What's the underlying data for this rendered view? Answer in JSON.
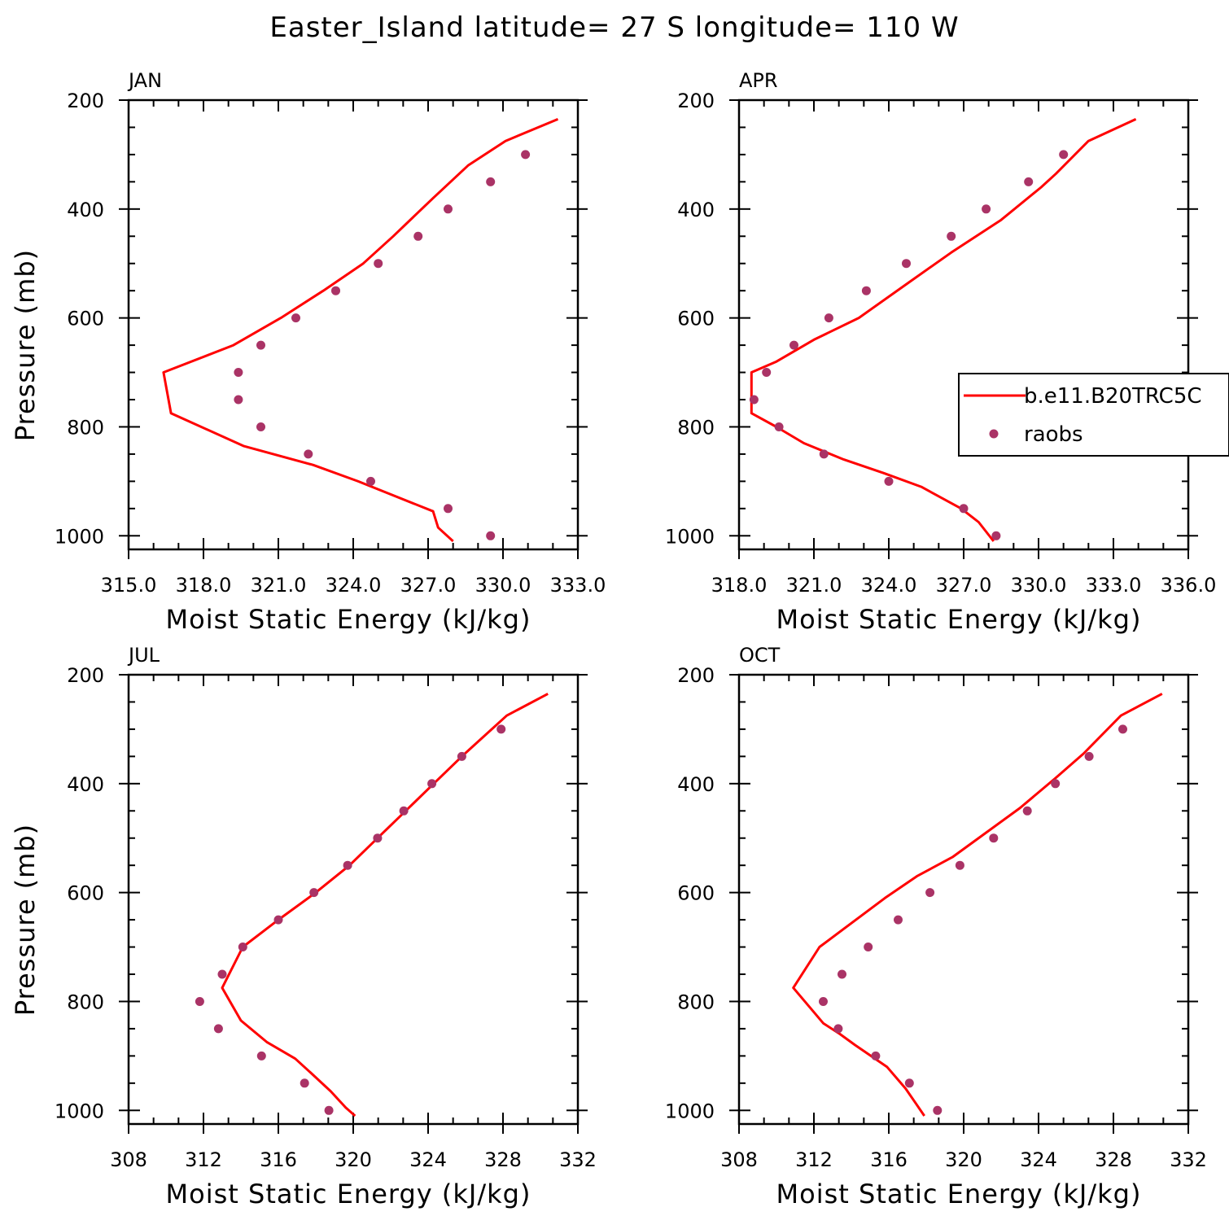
{
  "title": "Easter_Island  latitude= 27 S longitude= 110 W",
  "colors": {
    "model": "#ff0000",
    "obs": "#aa3366"
  },
  "legend": {
    "model_label": "b.e11.B20TRC5C",
    "obs_label": "raobs",
    "placement": "right-center of APR panel"
  },
  "chart_data": [
    {
      "type": "line",
      "panel": "JAN",
      "xlabel": "Moist Static Energy (kJ/kg)",
      "ylabel": "Pressure (mb)",
      "xlim": [
        315,
        333
      ],
      "ylim": [
        1025,
        200
      ],
      "xticks": [
        315,
        318,
        321,
        324,
        327,
        330,
        333
      ],
      "xtick_labels": [
        "315.0",
        "318.0",
        "321.0",
        "324.0",
        "327.0",
        "330.0",
        "333.0"
      ],
      "yticks": [
        1000,
        800,
        600,
        400,
        200
      ],
      "ytick_labels": [
        "1000",
        "800",
        "600",
        "400",
        "200"
      ],
      "series": [
        {
          "name": "b.e11.B20TRC5C",
          "kind": "line",
          "points": [
            [
              328.0,
              1010
            ],
            [
              327.4,
              985
            ],
            [
              327.2,
              955
            ],
            [
              324.2,
              900
            ],
            [
              322.4,
              870
            ],
            [
              319.6,
              835
            ],
            [
              316.7,
              775
            ],
            [
              316.4,
              700
            ],
            [
              319.2,
              650
            ],
            [
              321.1,
              600
            ],
            [
              322.8,
              550
            ],
            [
              324.4,
              500
            ],
            [
              325.6,
              450
            ],
            [
              327.2,
              380
            ],
            [
              328.6,
              320
            ],
            [
              330.1,
              275
            ],
            [
              332.2,
              235
            ]
          ]
        },
        {
          "name": "raobs",
          "kind": "scatter",
          "points": [
            [
              329.5,
              1000
            ],
            [
              327.8,
              950
            ],
            [
              324.7,
              900
            ],
            [
              322.2,
              850
            ],
            [
              320.3,
              800
            ],
            [
              319.4,
              750
            ],
            [
              319.4,
              700
            ],
            [
              320.3,
              650
            ],
            [
              321.7,
              600
            ],
            [
              323.3,
              550
            ],
            [
              325.0,
              500
            ],
            [
              326.6,
              450
            ],
            [
              327.8,
              400
            ],
            [
              329.5,
              350
            ],
            [
              330.9,
              300
            ]
          ]
        }
      ]
    },
    {
      "type": "line",
      "panel": "APR",
      "xlabel": "Moist Static Energy (kJ/kg)",
      "ylabel": "",
      "xlim": [
        318,
        336
      ],
      "ylim": [
        1025,
        200
      ],
      "xticks": [
        318,
        321,
        324,
        327,
        330,
        333,
        336
      ],
      "xtick_labels": [
        "318.0",
        "321.0",
        "324.0",
        "327.0",
        "330.0",
        "333.0",
        "336.0"
      ],
      "yticks": [
        1000,
        800,
        600,
        400,
        200
      ],
      "ytick_labels": [
        "1000",
        "800",
        "600",
        "400",
        "200"
      ],
      "series": [
        {
          "name": "b.e11.B20TRC5C",
          "kind": "line",
          "points": [
            [
              328.2,
              1010
            ],
            [
              327.6,
              975
            ],
            [
              326.9,
              950
            ],
            [
              325.3,
              910
            ],
            [
              323.8,
              885
            ],
            [
              322.2,
              860
            ],
            [
              320.6,
              830
            ],
            [
              319.5,
              800
            ],
            [
              318.5,
              775
            ],
            [
              318.5,
              700
            ],
            [
              319.5,
              680
            ],
            [
              321.0,
              640
            ],
            [
              322.8,
              600
            ],
            [
              324.8,
              535
            ],
            [
              326.5,
              480
            ],
            [
              328.5,
              420
            ],
            [
              330.1,
              360
            ],
            [
              330.7,
              335
            ],
            [
              332.0,
              275
            ],
            [
              333.9,
              235
            ]
          ]
        },
        {
          "name": "raobs",
          "kind": "scatter",
          "points": [
            [
              328.3,
              1000
            ],
            [
              327.0,
              950
            ],
            [
              324.0,
              900
            ],
            [
              321.4,
              850
            ],
            [
              319.6,
              800
            ],
            [
              318.6,
              750
            ],
            [
              319.1,
              700
            ],
            [
              320.2,
              650
            ],
            [
              321.6,
              600
            ],
            [
              323.1,
              550
            ],
            [
              324.7,
              500
            ],
            [
              326.5,
              450
            ],
            [
              327.9,
              400
            ],
            [
              329.6,
              350
            ],
            [
              331.0,
              300
            ]
          ]
        }
      ]
    },
    {
      "type": "line",
      "panel": "JUL",
      "xlabel": "Moist Static Energy (kJ/kg)",
      "ylabel": "Pressure (mb)",
      "xlim": [
        308,
        332
      ],
      "ylim": [
        1025,
        200
      ],
      "xticks": [
        308,
        312,
        316,
        320,
        324,
        328,
        332
      ],
      "xtick_labels": [
        "308",
        "312",
        "316",
        "320",
        "324",
        "328",
        "332"
      ],
      "yticks": [
        1000,
        800,
        600,
        400,
        200
      ],
      "ytick_labels": [
        "1000",
        "800",
        "600",
        "400",
        "200"
      ],
      "series": [
        {
          "name": "b.e11.B20TRC5C",
          "kind": "line",
          "points": [
            [
              320.1,
              1010
            ],
            [
              319.6,
              995
            ],
            [
              318.8,
              965
            ],
            [
              317.7,
              930
            ],
            [
              316.9,
              905
            ],
            [
              315.4,
              875
            ],
            [
              314.0,
              835
            ],
            [
              313.0,
              775
            ],
            [
              314.1,
              700
            ],
            [
              316.0,
              650
            ],
            [
              318.0,
              600
            ],
            [
              319.8,
              550
            ],
            [
              321.3,
              500
            ],
            [
              322.8,
              450
            ],
            [
              324.3,
              400
            ],
            [
              325.8,
              350
            ],
            [
              326.6,
              325
            ],
            [
              328.2,
              275
            ],
            [
              330.4,
              235
            ]
          ]
        },
        {
          "name": "raobs",
          "kind": "scatter",
          "points": [
            [
              318.7,
              1000
            ],
            [
              317.4,
              950
            ],
            [
              315.1,
              900
            ],
            [
              312.8,
              850
            ],
            [
              311.8,
              800
            ],
            [
              313.0,
              750
            ],
            [
              314.1,
              700
            ],
            [
              316.0,
              650
            ],
            [
              317.9,
              600
            ],
            [
              319.7,
              550
            ],
            [
              321.3,
              500
            ],
            [
              322.7,
              450
            ],
            [
              324.2,
              400
            ],
            [
              325.8,
              350
            ],
            [
              327.9,
              300
            ]
          ]
        }
      ]
    },
    {
      "type": "line",
      "panel": "OCT",
      "xlabel": "Moist Static Energy (kJ/kg)",
      "ylabel": "",
      "xlim": [
        308,
        332
      ],
      "ylim": [
        1025,
        200
      ],
      "xticks": [
        308,
        312,
        316,
        320,
        324,
        328,
        332
      ],
      "xtick_labels": [
        "308",
        "312",
        "316",
        "320",
        "324",
        "328",
        "332"
      ],
      "yticks": [
        1000,
        800,
        600,
        400,
        200
      ],
      "ytick_labels": [
        "1000",
        "800",
        "600",
        "400",
        "200"
      ],
      "series": [
        {
          "name": "b.e11.B20TRC5C",
          "kind": "line",
          "points": [
            [
              317.9,
              1010
            ],
            [
              317.4,
              985
            ],
            [
              316.9,
              960
            ],
            [
              315.9,
              920
            ],
            [
              314.2,
              880
            ],
            [
              313.4,
              860
            ],
            [
              312.5,
              840
            ],
            [
              310.9,
              775
            ],
            [
              312.3,
              700
            ],
            [
              315.8,
              610
            ],
            [
              317.5,
              570
            ],
            [
              319.4,
              535
            ],
            [
              321.2,
              490
            ],
            [
              323.0,
              445
            ],
            [
              324.9,
              390
            ],
            [
              326.4,
              345
            ],
            [
              328.4,
              275
            ],
            [
              330.6,
              235
            ]
          ]
        },
        {
          "name": "raobs",
          "kind": "scatter",
          "points": [
            [
              318.6,
              1000
            ],
            [
              317.1,
              950
            ],
            [
              315.3,
              900
            ],
            [
              313.3,
              850
            ],
            [
              312.5,
              800
            ],
            [
              313.5,
              750
            ],
            [
              314.9,
              700
            ],
            [
              316.5,
              650
            ],
            [
              318.2,
              600
            ],
            [
              319.8,
              550
            ],
            [
              321.6,
              500
            ],
            [
              323.4,
              450
            ],
            [
              324.9,
              400
            ],
            [
              326.7,
              350
            ],
            [
              328.5,
              300
            ]
          ]
        }
      ]
    }
  ]
}
